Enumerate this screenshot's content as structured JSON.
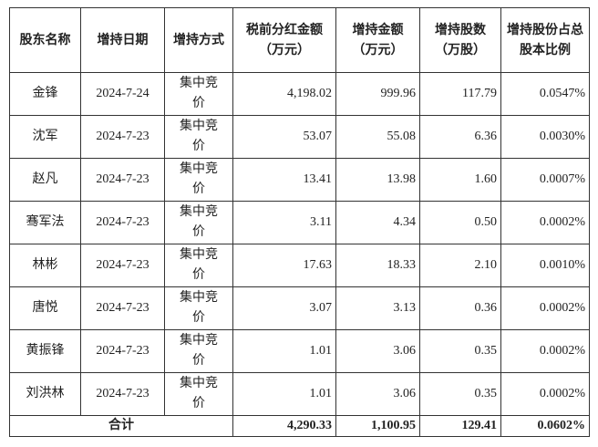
{
  "table": {
    "columns": [
      "股东名称",
      "增持日期",
      "增持方式",
      "税前分红金额（万元）",
      "增持金额（万元）",
      "增持股数（万股）",
      "增持股份占总股本比例"
    ],
    "rows": [
      [
        "金锋",
        "2024-7-24",
        "集中竞价",
        "4,198.02",
        "999.96",
        "117.79",
        "0.0547%"
      ],
      [
        "沈军",
        "2024-7-23",
        "集中竞价",
        "53.07",
        "55.08",
        "6.36",
        "0.0030%"
      ],
      [
        "赵凡",
        "2024-7-23",
        "集中竞价",
        "13.41",
        "13.98",
        "1.60",
        "0.0007%"
      ],
      [
        "骞军法",
        "2024-7-23",
        "集中竞价",
        "3.11",
        "4.34",
        "0.50",
        "0.0002%"
      ],
      [
        "林彬",
        "2024-7-23",
        "集中竞价",
        "17.63",
        "18.33",
        "2.10",
        "0.0010%"
      ],
      [
        "唐悦",
        "2024-7-23",
        "集中竞价",
        "3.07",
        "3.13",
        "0.36",
        "0.0002%"
      ],
      [
        "黄振锋",
        "2024-7-23",
        "集中竞价",
        "1.01",
        "3.06",
        "0.35",
        "0.0002%"
      ],
      [
        "刘洪林",
        "2024-7-23",
        "集中竞价",
        "1.01",
        "3.06",
        "0.35",
        "0.0002%"
      ]
    ],
    "total": [
      "合计",
      "4,290.33",
      "1,100.95",
      "129.41",
      "0.0602%"
    ]
  }
}
